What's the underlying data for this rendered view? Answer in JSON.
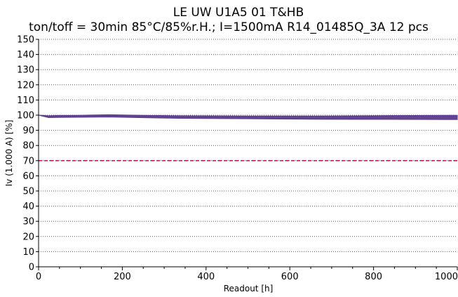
{
  "chart_data": {
    "type": "line",
    "title": "LE UW U1A5 01  T&HB",
    "subtitle": "ton/toff = 30min 85°C/85%r.H.; I=1500mA  R14_01485Q_3A  12 pcs",
    "xlabel": "Readout [h]",
    "ylabel": "Iv (1.000 A) [%]",
    "xlim": [
      0,
      1000
    ],
    "ylim": [
      0,
      150
    ],
    "x_ticks": [
      0,
      200,
      400,
      600,
      800,
      1000
    ],
    "y_ticks": [
      0,
      10,
      20,
      30,
      40,
      50,
      60,
      70,
      80,
      90,
      100,
      110,
      120,
      130,
      140,
      150
    ],
    "grid": true,
    "legend": "none",
    "series_color": "#5b3a8c",
    "band": {
      "x": [
        0,
        24,
        48,
        96,
        168,
        250,
        336,
        500,
        672,
        840,
        1000
      ],
      "upper": [
        100,
        99.6,
        99.8,
        99.9,
        100.3,
        99.9,
        99.6,
        99.4,
        99.4,
        99.7,
        99.9
      ],
      "lower": [
        100,
        98.4,
        98.5,
        98.6,
        98.8,
        98.3,
        97.9,
        97.6,
        97.3,
        97.2,
        97.1
      ]
    },
    "reference_line": {
      "y": 70,
      "color": "#e0105a",
      "style": "dashed"
    }
  }
}
